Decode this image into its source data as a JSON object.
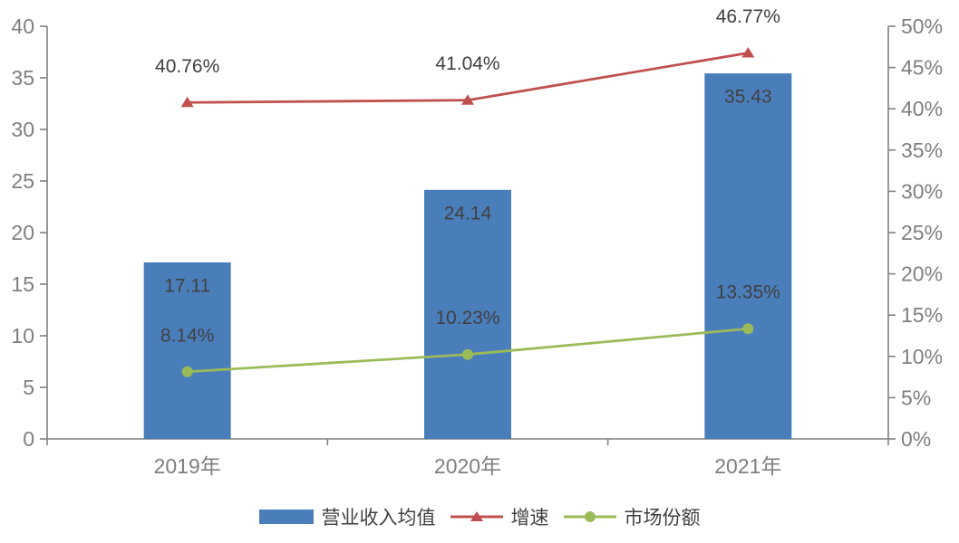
{
  "chart_data": {
    "type": "combo",
    "title": "",
    "categories": [
      "2019年",
      "2020年",
      "2021年"
    ],
    "series": [
      {
        "id": "revenue",
        "name": "营业收入均值",
        "type": "bar",
        "axis": "left",
        "color": "#4A7EBB",
        "values": [
          17.11,
          24.14,
          35.43
        ],
        "data_labels": [
          "17.11",
          "24.14",
          "35.43"
        ]
      },
      {
        "id": "growth",
        "name": "增速",
        "type": "line",
        "marker": "triangle",
        "axis": "right",
        "color": "#C0504D",
        "values": [
          40.76,
          41.04,
          46.77
        ],
        "data_labels": [
          "40.76%",
          "41.04%",
          "46.77%"
        ]
      },
      {
        "id": "market-share",
        "name": "市场份额",
        "type": "line",
        "marker": "circle",
        "axis": "right",
        "color": "#9BBB59",
        "values": [
          8.14,
          10.23,
          13.35
        ],
        "data_labels": [
          "8.14%",
          "10.23%",
          "13.35%"
        ]
      }
    ],
    "left_axis": {
      "min": 0,
      "max": 40,
      "step": 5,
      "tick_labels": [
        "0",
        "5",
        "10",
        "15",
        "20",
        "25",
        "30",
        "35",
        "40"
      ]
    },
    "right_axis": {
      "min": 0,
      "max": 50,
      "step": 5,
      "tick_labels": [
        "0%",
        "5%",
        "10%",
        "15%",
        "20%",
        "25%",
        "30%",
        "35%",
        "40%",
        "45%",
        "50%"
      ]
    },
    "grid": false,
    "legend_position": "bottom",
    "colors": {
      "axis": "#808080",
      "axis_tick_text": "#7F7F7F",
      "data_label_text": "#404040",
      "legend_text": "#404040",
      "background": "#FFFFFF"
    }
  }
}
